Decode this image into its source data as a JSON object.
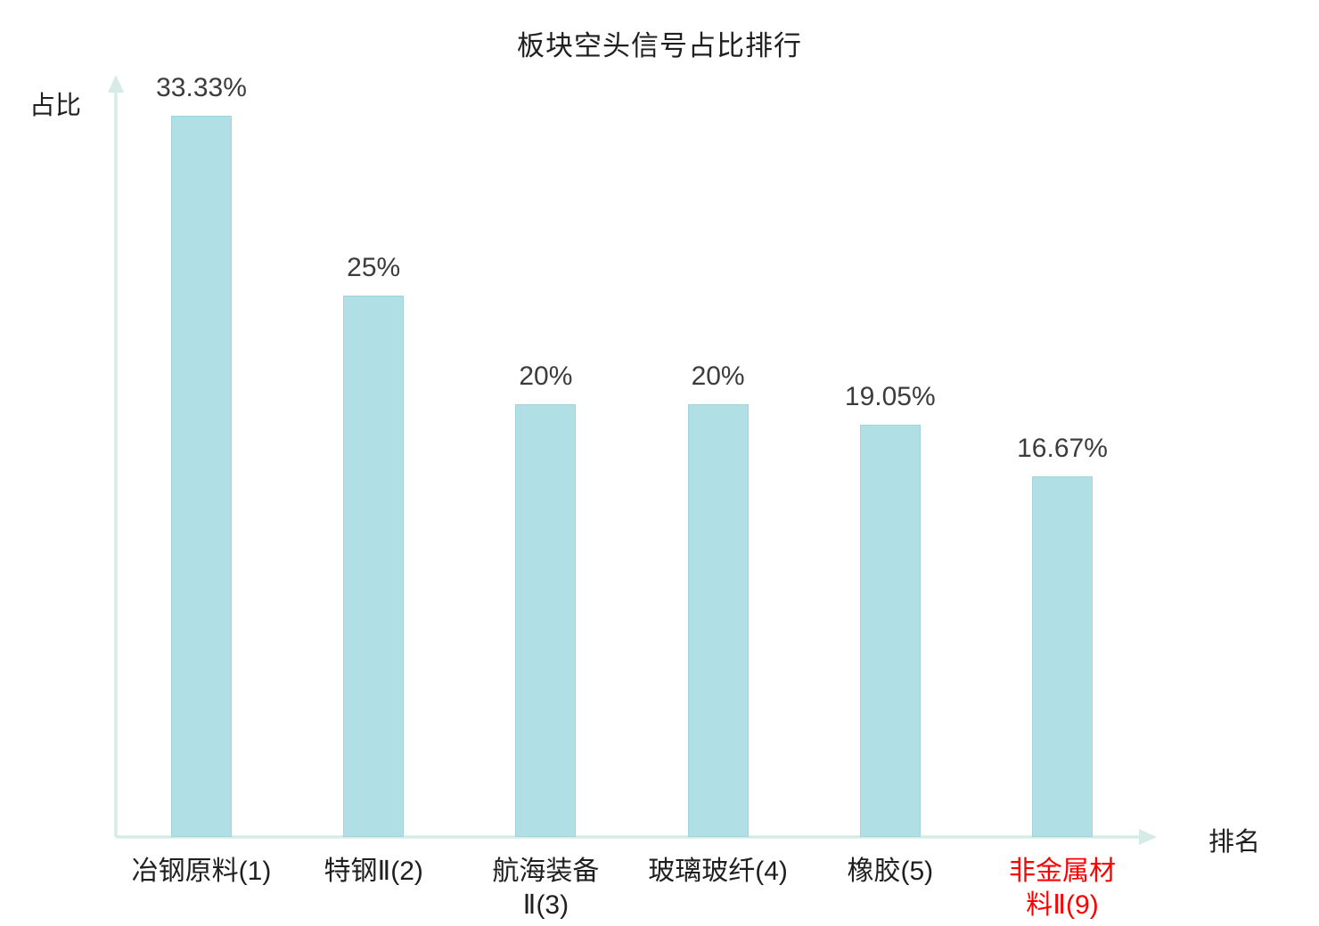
{
  "chart_data": {
    "type": "bar",
    "title": "板块空头信号占比排行",
    "xlabel": "排名",
    "ylabel": "占比",
    "categories": [
      "冶钢原料(1)",
      "特钢Ⅱ(2)",
      "航海装备Ⅱ(3)",
      "玻璃玻纤(4)",
      "橡胶(5)",
      "非金属材料Ⅱ(9)"
    ],
    "category_lines": [
      [
        "冶钢原料(1)"
      ],
      [
        "特钢Ⅱ(2)"
      ],
      [
        "航海装备",
        "Ⅱ(3)"
      ],
      [
        "玻璃玻纤(4)"
      ],
      [
        "橡胶(5)"
      ],
      [
        "非金属材",
        "料Ⅱ(9)"
      ]
    ],
    "values": [
      33.33,
      25,
      20,
      20,
      19.05,
      16.67
    ],
    "value_labels": [
      "33.33%",
      "25%",
      "20%",
      "20%",
      "19.05%",
      "16.67%"
    ],
    "highlight_index": 5,
    "ylim": [
      0,
      34.5
    ],
    "grid": false,
    "legend": "none",
    "colors": {
      "bar_fill": "#b0e0e6",
      "bar_edge": "#a2d4dc",
      "axis": "#d5ece6",
      "value_text": "#3c3c3c",
      "category_text": "#1f1f1f",
      "highlight_text": "#ff0000",
      "title_text": "#1f1f1f"
    }
  }
}
